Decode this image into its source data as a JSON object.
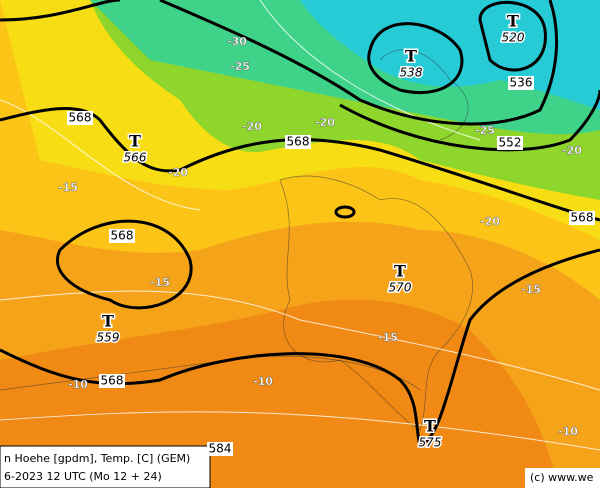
{
  "map": {
    "centers": [
      {
        "symbol": "T",
        "value": 566
      },
      {
        "symbol": "T",
        "value": 538
      },
      {
        "symbol": "T",
        "value": 520
      },
      {
        "symbol": "T",
        "value": 570
      },
      {
        "symbol": "T",
        "value": 559
      },
      {
        "symbol": "T",
        "value": 575
      }
    ],
    "height_labels": [
      568,
      568,
      568,
      568,
      568,
      536,
      552,
      584
    ],
    "temperature_labels": [
      -30,
      -25,
      -20,
      -20,
      -20,
      -25,
      -20,
      -20,
      -15,
      -15,
      -15,
      -15,
      -10,
      -10,
      -10
    ]
  },
  "footer": {
    "line1": "n Hoehe [gpdm], Temp. [C] (GEM)",
    "line2": "6-2023 12 UTC (Mo 12 + 24)"
  },
  "copyright": "(c) www.we"
}
